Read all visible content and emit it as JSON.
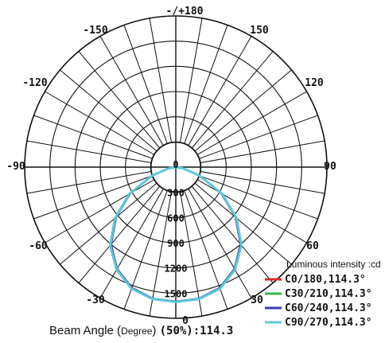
{
  "chart_data": {
    "type": "polar",
    "title": "",
    "angle_labels": [
      {
        "deg": 180,
        "text": "-/+180"
      },
      {
        "deg": 150,
        "text": "150"
      },
      {
        "deg": -150,
        "text": "-150"
      },
      {
        "deg": 120,
        "text": "120"
      },
      {
        "deg": -120,
        "text": "-120"
      },
      {
        "deg": 90,
        "text": "90"
      },
      {
        "deg": -90,
        "text": "-90"
      },
      {
        "deg": 60,
        "text": "60"
      },
      {
        "deg": -60,
        "text": "-60"
      },
      {
        "deg": 30,
        "text": "30"
      },
      {
        "deg": -30,
        "text": "-30"
      },
      {
        "deg": 0,
        "text": "0"
      }
    ],
    "radial_max": 1800,
    "radial_ticks": [
      300,
      600,
      900,
      1200,
      1500
    ],
    "radial_tick_labels": [
      "300",
      "600",
      "900",
      "1200",
      "1500"
    ],
    "center_label": "0",
    "legend_title": "Luminous intensity :cd",
    "series": [
      {
        "name": "C0/180,114.3°",
        "color": "#d62a2a",
        "angles": [
          -90,
          -80,
          -70,
          -60,
          -50,
          -40,
          -30,
          -20,
          -10,
          0,
          10,
          20,
          30,
          40,
          50,
          60,
          70,
          80,
          90
        ],
        "values": [
          0,
          90,
          300,
          630,
          930,
          1200,
          1400,
          1530,
          1590,
          1600,
          1590,
          1530,
          1400,
          1200,
          930,
          630,
          300,
          90,
          0
        ]
      },
      {
        "name": "C30/210,114.3°",
        "color": "#3bb34a",
        "angles": [
          -90,
          -80,
          -70,
          -60,
          -50,
          -40,
          -30,
          -20,
          -10,
          0,
          10,
          20,
          30,
          40,
          50,
          60,
          70,
          80,
          90
        ],
        "values": [
          0,
          90,
          300,
          630,
          935,
          1205,
          1405,
          1535,
          1592,
          1602,
          1592,
          1535,
          1405,
          1205,
          935,
          630,
          300,
          90,
          0
        ]
      },
      {
        "name": "C60/240,114.3°",
        "color": "#3b3bb3",
        "angles": [
          -90,
          -80,
          -70,
          -60,
          -50,
          -40,
          -30,
          -20,
          -10,
          0,
          10,
          20,
          30,
          40,
          50,
          60,
          70,
          80,
          90
        ],
        "values": [
          0,
          88,
          298,
          625,
          928,
          1198,
          1398,
          1528,
          1588,
          1598,
          1588,
          1528,
          1398,
          1198,
          928,
          625,
          298,
          88,
          0
        ]
      },
      {
        "name": "C90/270,114.3°",
        "color": "#5cc8d8",
        "angles": [
          -90,
          -80,
          -70,
          -60,
          -50,
          -40,
          -30,
          -20,
          -10,
          0,
          10,
          20,
          30,
          40,
          50,
          60,
          70,
          80,
          90
        ],
        "values": [
          0,
          92,
          305,
          640,
          945,
          1215,
          1410,
          1540,
          1595,
          1605,
          1595,
          1540,
          1410,
          1215,
          945,
          640,
          305,
          92,
          0
        ]
      }
    ],
    "legend_position": "bottom-right",
    "grid": true
  },
  "footer": {
    "beam_label_part1": "Beam Angle (",
    "beam_label_degree": "Degree",
    "beam_label_part2": ") ",
    "beam_value": "(50%):114.3"
  }
}
